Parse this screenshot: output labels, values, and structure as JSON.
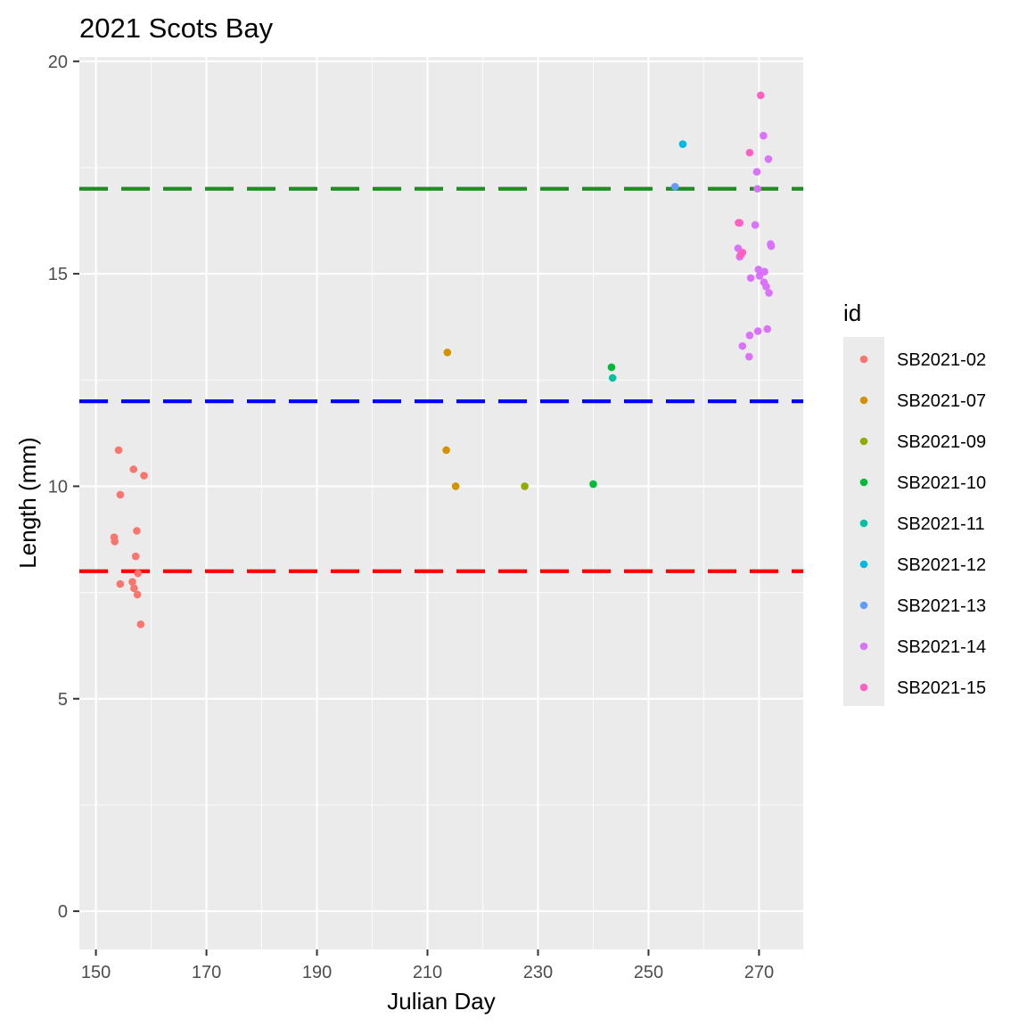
{
  "chart_data": {
    "type": "scatter",
    "title": "2021 Scots Bay",
    "xlabel": "Julian Day",
    "ylabel": "Length (mm)",
    "xlim": [
      147,
      278
    ],
    "ylim": [
      -0.9,
      20.1
    ],
    "x_ticks": [
      150,
      170,
      190,
      210,
      230,
      250,
      270
    ],
    "y_ticks": [
      0,
      5,
      10,
      15,
      20
    ],
    "grid": true,
    "legend_title": "id",
    "legend_position": "right",
    "reference_lines": [
      {
        "y": 17,
        "color": "#228B22",
        "style": "dashed"
      },
      {
        "y": 12,
        "color": "#0000FF",
        "style": "dashed"
      },
      {
        "y": 8,
        "color": "#FF0000",
        "style": "dashed"
      }
    ],
    "series": [
      {
        "name": "SB2021-02",
        "color": "#F8766D",
        "points": [
          [
            154.1,
            10.85
          ],
          [
            153.3,
            8.8
          ],
          [
            153.4,
            8.7
          ],
          [
            154.4,
            9.8
          ],
          [
            154.4,
            7.7
          ],
          [
            156.8,
            10.4
          ],
          [
            157.2,
            8.35
          ],
          [
            157.4,
            8.95
          ],
          [
            158.7,
            10.25
          ],
          [
            157.6,
            7.95
          ],
          [
            156.6,
            7.75
          ],
          [
            156.9,
            7.6
          ],
          [
            157.5,
            7.45
          ],
          [
            158.1,
            6.75
          ]
        ]
      },
      {
        "name": "SB2021-07",
        "color": "#D39200",
        "points": [
          [
            213.6,
            13.15
          ],
          [
            213.4,
            10.85
          ],
          [
            215.1,
            10.0
          ]
        ]
      },
      {
        "name": "SB2021-09",
        "color": "#93AA00",
        "points": [
          [
            227.6,
            10.0
          ]
        ]
      },
      {
        "name": "SB2021-10",
        "color": "#00BA38",
        "points": [
          [
            240.0,
            10.05
          ],
          [
            243.3,
            12.8
          ]
        ]
      },
      {
        "name": "SB2021-11",
        "color": "#00C19F",
        "points": [
          [
            243.5,
            12.55
          ]
        ]
      },
      {
        "name": "SB2021-12",
        "color": "#00B9E3",
        "points": [
          [
            256.2,
            18.05
          ]
        ]
      },
      {
        "name": "SB2021-13",
        "color": "#619CFF",
        "points": [
          [
            254.8,
            17.05
          ]
        ]
      },
      {
        "name": "SB2021-14",
        "color": "#DB72FB",
        "points": [
          [
            269.3,
            16.15
          ],
          [
            269.6,
            17.4
          ],
          [
            269.7,
            17.0
          ],
          [
            266.2,
            15.6
          ],
          [
            266.5,
            15.4
          ],
          [
            267.0,
            13.3
          ],
          [
            268.2,
            13.05
          ],
          [
            268.3,
            13.55
          ],
          [
            269.8,
            13.65
          ],
          [
            268.5,
            14.9
          ],
          [
            269.9,
            15.1
          ],
          [
            270.1,
            14.95
          ],
          [
            271.0,
            15.05
          ],
          [
            270.9,
            14.8
          ],
          [
            271.3,
            14.7
          ],
          [
            271.8,
            14.55
          ],
          [
            270.8,
            18.25
          ],
          [
            271.7,
            17.7
          ],
          [
            272.2,
            15.65
          ],
          [
            272.1,
            15.7
          ],
          [
            271.5,
            13.7
          ]
        ]
      },
      {
        "name": "SB2021-15",
        "color": "#FF61C3",
        "points": [
          [
            270.3,
            19.2
          ],
          [
            268.3,
            17.85
          ],
          [
            266.3,
            16.2
          ],
          [
            266.5,
            16.2
          ],
          [
            267.0,
            15.5
          ],
          [
            266.7,
            15.45
          ]
        ]
      }
    ]
  }
}
